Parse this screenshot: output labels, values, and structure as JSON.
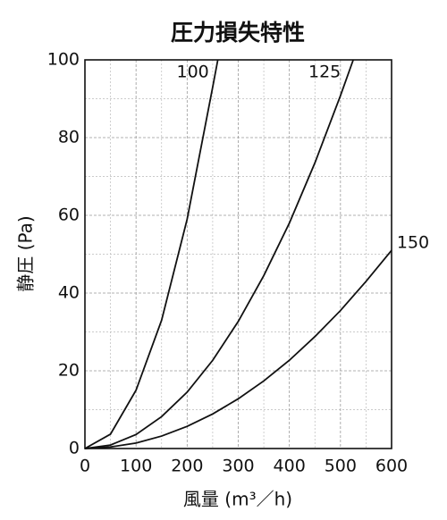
{
  "chart_data": {
    "type": "line",
    "title": "圧力損失特性",
    "x_label": "風量 (m³／h)",
    "y_label": "静圧 (Pa)",
    "xlim": [
      0,
      600
    ],
    "ylim": [
      0,
      100
    ],
    "xticks": [
      0,
      100,
      200,
      300,
      400,
      500,
      600
    ],
    "yticks": [
      0,
      20,
      40,
      60,
      80,
      100
    ],
    "grid": true,
    "series": [
      {
        "name": "100",
        "color": "#111111",
        "x": [
          0,
          50,
          100,
          150,
          200,
          250,
          260
        ],
        "values": [
          0,
          3.7,
          15,
          33,
          59,
          93,
          100
        ]
      },
      {
        "name": "125",
        "color": "#111111",
        "x": [
          0,
          50,
          100,
          150,
          200,
          250,
          300,
          350,
          400,
          450,
          500,
          525
        ],
        "values": [
          0,
          0.9,
          3.6,
          8.2,
          14.5,
          22.7,
          32.7,
          44.5,
          58,
          73.5,
          90.8,
          100
        ]
      },
      {
        "name": "150",
        "color": "#111111",
        "x": [
          0,
          50,
          100,
          150,
          200,
          250,
          300,
          350,
          400,
          450,
          500,
          550,
          600
        ],
        "values": [
          0,
          0.4,
          1.4,
          3.2,
          5.7,
          8.9,
          12.8,
          17.4,
          22.7,
          28.8,
          35.5,
          43,
          51
        ]
      }
    ]
  }
}
